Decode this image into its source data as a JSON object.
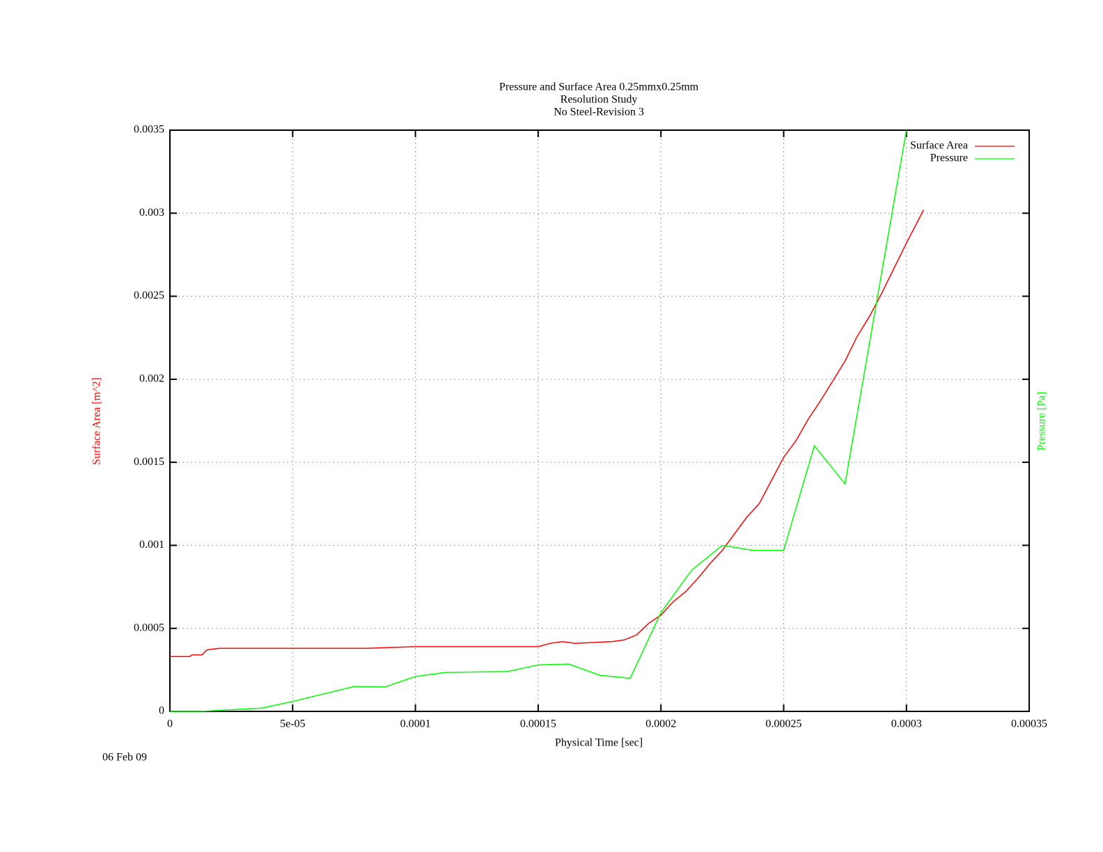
{
  "chart_data": {
    "type": "line",
    "title": [
      "Pressure and Surface Area 0.25mmx0.25mm",
      "Resolution Study",
      "No Steel-Revision 3"
    ],
    "xlabel": "Physical Time [sec]",
    "ylabel": "Surface Area [m^2]",
    "y2label": "Pressure [Pa]",
    "date": "06 Feb 09",
    "xlim": [
      0,
      0.00035
    ],
    "ylim": [
      0,
      0.0035
    ],
    "xticks": [
      0,
      {
        "value": 5e-05,
        "label": "5e-05"
      },
      0.0001,
      0.00015,
      0.0002,
      0.00025,
      0.0003,
      0.00035
    ],
    "yticks": [
      0,
      0.0005,
      0.001,
      0.0015,
      0.002,
      0.0025,
      0.003,
      0.0035
    ],
    "grid": true,
    "legend": "upper right",
    "series": [
      {
        "name": "Surface Area",
        "color": "#ff0000",
        "x": [
          0,
          8e-06,
          9e-06,
          1.3e-05,
          1.5e-05,
          2e-05,
          5e-05,
          8e-05,
          0.0001,
          0.00013,
          0.00015,
          0.000155,
          0.00016,
          0.000165,
          0.00018,
          0.000185,
          0.00019,
          0.000195,
          0.0002,
          0.000205,
          0.00021,
          0.000215,
          0.00022,
          0.000225,
          0.00023,
          0.000235,
          0.00024,
          0.000245,
          0.00025,
          0.000255,
          0.00026,
          0.000265,
          0.00027,
          0.000275,
          0.00028,
          0.000285,
          0.00029,
          0.000295,
          0.0003,
          0.000307
        ],
        "values": [
          0.00033,
          0.00033,
          0.00034,
          0.00034,
          0.00037,
          0.00038,
          0.00038,
          0.00038,
          0.00039,
          0.00039,
          0.00039,
          0.00041,
          0.00042,
          0.00041,
          0.00042,
          0.00043,
          0.00046,
          0.00053,
          0.00058,
          0.00066,
          0.00072,
          0.0008,
          0.00089,
          0.00097,
          0.00107,
          0.00117,
          0.00125,
          0.00139,
          0.00153,
          0.00163,
          0.00176,
          0.00187,
          0.00199,
          0.00211,
          0.00226,
          0.00238,
          0.00252,
          0.00267,
          0.00282,
          0.00302
        ]
      },
      {
        "name": "Pressure",
        "color": "#00ff00",
        "x": [
          0,
          1.25e-05,
          3.75e-05,
          5e-05,
          7.5e-05,
          8.75e-05,
          0.0001,
          0.0001125,
          0.0001375,
          0.00015,
          0.0001625,
          0.000175,
          0.0001875,
          0.0002,
          0.0002125,
          0.000225,
          0.0002375,
          0.00025,
          0.0002625,
          0.000275,
          0.0003
        ],
        "values": [
          0,
          0,
          2e-05,
          6e-05,
          0.00015,
          0.000147,
          0.00021,
          0.000235,
          0.00024,
          0.00028,
          0.000285,
          0.000218,
          0.0002,
          0.000595,
          0.00085,
          0.001,
          0.00097,
          0.00097,
          0.0016,
          0.00137,
          0.0035
        ]
      }
    ]
  }
}
